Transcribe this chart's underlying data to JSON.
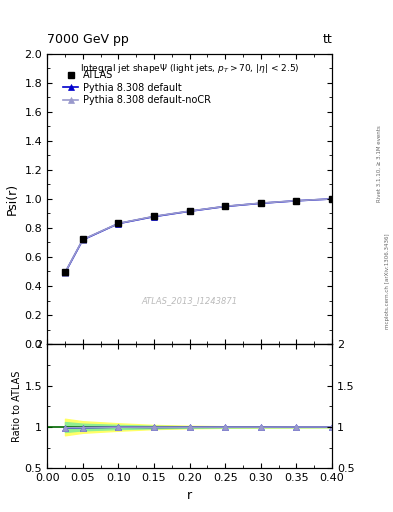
{
  "title_top": "7000 GeV pp",
  "title_top_right": "tt",
  "xlabel": "r",
  "ylabel_main": "Psi(r)",
  "ylabel_ratio": "Ratio to ATLAS",
  "right_label": "Rivet 3.1.10, ≥ 3.1M events",
  "right_label2": "mcplots.cern.ch [arXiv:1306.3436]",
  "watermark": "ATLAS_2013_I1243871",
  "r_values": [
    0.025,
    0.05,
    0.1,
    0.15,
    0.2,
    0.25,
    0.3,
    0.35,
    0.4
  ],
  "atlas_y": [
    0.497,
    0.725,
    0.832,
    0.882,
    0.918,
    0.95,
    0.972,
    0.988,
    1.0
  ],
  "pythia_default_y": [
    0.49,
    0.718,
    0.83,
    0.878,
    0.915,
    0.948,
    0.97,
    0.987,
    1.0
  ],
  "pythia_nocr_y": [
    0.492,
    0.72,
    0.831,
    0.88,
    0.916,
    0.949,
    0.971,
    0.988,
    1.0
  ],
  "ratio_default_y": [
    0.986,
    0.991,
    0.998,
    0.995,
    0.997,
    0.998,
    0.998,
    0.999,
    1.0
  ],
  "ratio_nocr_y": [
    0.99,
    0.993,
    0.999,
    0.998,
    0.998,
    0.999,
    0.999,
    1.0,
    1.0
  ],
  "atlas_ratio_err_lo": [
    0.1,
    0.07,
    0.045,
    0.025,
    0.015,
    0.01,
    0.007,
    0.005,
    0.003
  ],
  "atlas_ratio_err_hi": [
    0.1,
    0.07,
    0.045,
    0.025,
    0.015,
    0.01,
    0.007,
    0.005,
    0.003
  ],
  "atlas_ratio_err2_lo": [
    0.06,
    0.04,
    0.025,
    0.015,
    0.009,
    0.006,
    0.004,
    0.003,
    0.002
  ],
  "atlas_ratio_err2_hi": [
    0.06,
    0.04,
    0.025,
    0.015,
    0.009,
    0.006,
    0.004,
    0.003,
    0.002
  ],
  "ylim_main": [
    0.0,
    2.0
  ],
  "ylim_ratio": [
    0.5,
    2.0
  ],
  "xlim": [
    0.0,
    0.4
  ],
  "yticks_main": [
    0.0,
    0.2,
    0.4,
    0.6,
    0.8,
    1.0,
    1.2,
    1.4,
    1.6,
    1.8,
    2.0
  ],
  "yticks_ratio": [
    0.5,
    1.0,
    1.5,
    2.0
  ],
  "color_atlas": "#000000",
  "color_default": "#0000cc",
  "color_nocr": "#9999cc",
  "color_band_green": "#90ee90",
  "color_band_yellow": "#ffff66",
  "color_ref_line": "#006600",
  "background_color": "#ffffff"
}
